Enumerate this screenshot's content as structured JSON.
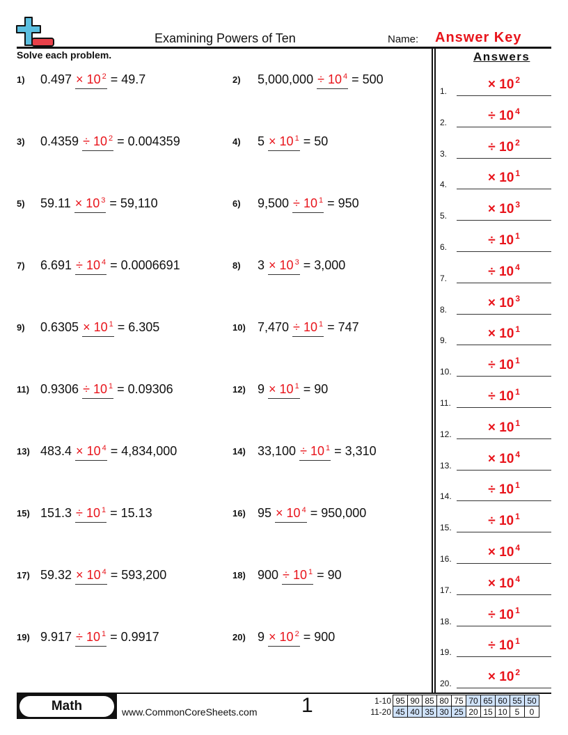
{
  "header": {
    "title": "Examining Powers of Ten",
    "name_label": "Name:",
    "name_value": "Answer Key",
    "instructions": "Solve each problem.",
    "answers_title": "Answers"
  },
  "logo": {
    "colors": {
      "plus": "#5bbfe0",
      "minus": "#e8414a"
    }
  },
  "accent_color": "#e8141b",
  "problems": [
    {
      "num": "1)",
      "left": "0.497",
      "op": "×",
      "base": "10",
      "exp": "2",
      "result": "= 49.7"
    },
    {
      "num": "2)",
      "left": "5,000,000",
      "op": "÷",
      "base": "10",
      "exp": "4",
      "result": "= 500"
    },
    {
      "num": "3)",
      "left": "0.4359",
      "op": "÷",
      "base": "10",
      "exp": "2",
      "result": "= 0.004359"
    },
    {
      "num": "4)",
      "left": "5",
      "op": "×",
      "base": "10",
      "exp": "1",
      "result": "= 50"
    },
    {
      "num": "5)",
      "left": "59.11",
      "op": "×",
      "base": "10",
      "exp": "3",
      "result": "= 59,110"
    },
    {
      "num": "6)",
      "left": "9,500",
      "op": "÷",
      "base": "10",
      "exp": "1",
      "result": "= 950"
    },
    {
      "num": "7)",
      "left": "6.691",
      "op": "÷",
      "base": "10",
      "exp": "4",
      "result": "= 0.0006691"
    },
    {
      "num": "8)",
      "left": "3",
      "op": "×",
      "base": "10",
      "exp": "3",
      "result": "= 3,000"
    },
    {
      "num": "9)",
      "left": "0.6305",
      "op": "×",
      "base": "10",
      "exp": "1",
      "result": "= 6.305"
    },
    {
      "num": "10)",
      "left": "7,470",
      "op": "÷",
      "base": "10",
      "exp": "1",
      "result": "= 747"
    },
    {
      "num": "11)",
      "left": "0.9306",
      "op": "÷",
      "base": "10",
      "exp": "1",
      "result": "= 0.09306"
    },
    {
      "num": "12)",
      "left": "9",
      "op": "×",
      "base": "10",
      "exp": "1",
      "result": "= 90"
    },
    {
      "num": "13)",
      "left": "483.4",
      "op": "×",
      "base": "10",
      "exp": "4",
      "result": "= 4,834,000"
    },
    {
      "num": "14)",
      "left": "33,100",
      "op": "÷",
      "base": "10",
      "exp": "1",
      "result": "= 3,310"
    },
    {
      "num": "15)",
      "left": "151.3",
      "op": "÷",
      "base": "10",
      "exp": "1",
      "result": "= 15.13"
    },
    {
      "num": "16)",
      "left": "95",
      "op": "×",
      "base": "10",
      "exp": "4",
      "result": "= 950,000"
    },
    {
      "num": "17)",
      "left": "59.32",
      "op": "×",
      "base": "10",
      "exp": "4",
      "result": "= 593,200"
    },
    {
      "num": "18)",
      "left": "900",
      "op": "÷",
      "base": "10",
      "exp": "1",
      "result": "= 90"
    },
    {
      "num": "19)",
      "left": "9.917",
      "op": "÷",
      "base": "10",
      "exp": "1",
      "result": "= 0.9917"
    },
    {
      "num": "20)",
      "left": "9",
      "op": "×",
      "base": "10",
      "exp": "2",
      "result": "= 900"
    }
  ],
  "answers": [
    {
      "label": "1.",
      "op": "×",
      "base": "10",
      "exp": "2"
    },
    {
      "label": "2.",
      "op": "÷",
      "base": "10",
      "exp": "4"
    },
    {
      "label": "3.",
      "op": "÷",
      "base": "10",
      "exp": "2"
    },
    {
      "label": "4.",
      "op": "×",
      "base": "10",
      "exp": "1"
    },
    {
      "label": "5.",
      "op": "×",
      "base": "10",
      "exp": "3"
    },
    {
      "label": "6.",
      "op": "÷",
      "base": "10",
      "exp": "1"
    },
    {
      "label": "7.",
      "op": "÷",
      "base": "10",
      "exp": "4"
    },
    {
      "label": "8.",
      "op": "×",
      "base": "10",
      "exp": "3"
    },
    {
      "label": "9.",
      "op": "×",
      "base": "10",
      "exp": "1"
    },
    {
      "label": "10.",
      "op": "÷",
      "base": "10",
      "exp": "1"
    },
    {
      "label": "11.",
      "op": "÷",
      "base": "10",
      "exp": "1"
    },
    {
      "label": "12.",
      "op": "×",
      "base": "10",
      "exp": "1"
    },
    {
      "label": "13.",
      "op": "×",
      "base": "10",
      "exp": "4"
    },
    {
      "label": "14.",
      "op": "÷",
      "base": "10",
      "exp": "1"
    },
    {
      "label": "15.",
      "op": "÷",
      "base": "10",
      "exp": "1"
    },
    {
      "label": "16.",
      "op": "×",
      "base": "10",
      "exp": "4"
    },
    {
      "label": "17.",
      "op": "×",
      "base": "10",
      "exp": "4"
    },
    {
      "label": "18.",
      "op": "÷",
      "base": "10",
      "exp": "1"
    },
    {
      "label": "19.",
      "op": "÷",
      "base": "10",
      "exp": "1"
    },
    {
      "label": "20.",
      "op": "×",
      "base": "10",
      "exp": "2"
    }
  ],
  "footer": {
    "subject": "Math",
    "site": "www.CommonCoreSheets.com",
    "page": "1"
  },
  "score_table": {
    "highlight_color": "#cfe2fa",
    "rows": [
      {
        "label": "1-10",
        "cells": [
          "95",
          "90",
          "85",
          "80",
          "75",
          "70",
          "65",
          "60",
          "55",
          "50"
        ],
        "highlighted": [
          false,
          false,
          false,
          false,
          false,
          true,
          true,
          true,
          true,
          true
        ]
      },
      {
        "label": "11-20",
        "cells": [
          "45",
          "40",
          "35",
          "30",
          "25",
          "20",
          "15",
          "10",
          "5",
          "0"
        ],
        "highlighted": [
          true,
          true,
          true,
          true,
          true,
          false,
          false,
          false,
          false,
          false
        ]
      }
    ]
  }
}
